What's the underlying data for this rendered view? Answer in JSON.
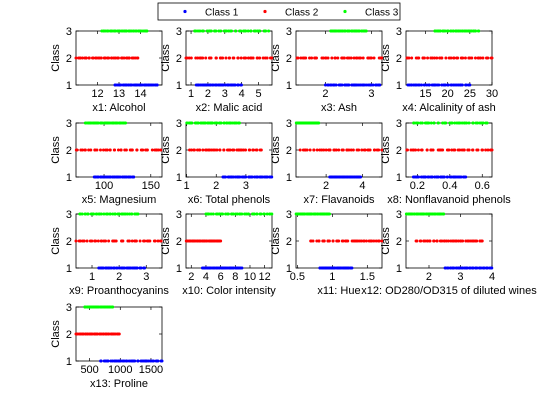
{
  "legend": {
    "entries": [
      {
        "name": "Class 1",
        "color": "#0000ff"
      },
      {
        "name": "Class 2",
        "color": "#ff0000"
      },
      {
        "name": "Class 3",
        "color": "#00ff00"
      }
    ],
    "placement": "top-center"
  },
  "chart_data": [
    {
      "type": "scatter",
      "xlabel": "x1: Alcohol",
      "ylabel": "Class",
      "xlim": [
        11,
        15
      ],
      "ylim": [
        1,
        3
      ],
      "xticks": [
        12,
        13,
        14
      ],
      "yticks": [
        1,
        2,
        3
      ],
      "ranges": [
        [
          12.8,
          14.8
        ],
        [
          11.0,
          13.9
        ],
        [
          12.2,
          14.3
        ]
      ]
    },
    {
      "type": "scatter",
      "xlabel": "x2: Malic acid",
      "ylabel": "Class",
      "xlim": [
        0.7,
        5.8
      ],
      "ylim": [
        1,
        3
      ],
      "xticks": [
        1,
        2,
        3,
        4,
        5
      ],
      "yticks": [
        1,
        2,
        3
      ],
      "ranges": [
        [
          1.3,
          4.0
        ],
        [
          0.7,
          5.8
        ],
        [
          1.2,
          5.6
        ]
      ]
    },
    {
      "type": "scatter",
      "xlabel": "x3: Ash",
      "ylabel": "Class",
      "xlim": [
        1.36,
        3.23
      ],
      "ylim": [
        1,
        3
      ],
      "xticks": [
        2,
        3
      ],
      "yticks": [
        1,
        2,
        3
      ],
      "ranges": [
        [
          2.0,
          3.2
        ],
        [
          1.36,
          3.23
        ],
        [
          2.1,
          2.9
        ]
      ]
    },
    {
      "type": "scatter",
      "xlabel": "x4: Alcalinity of ash",
      "ylabel": "Class",
      "xlim": [
        10.6,
        30
      ],
      "ylim": [
        1,
        3
      ],
      "xticks": [
        15,
        20,
        25,
        30
      ],
      "yticks": [
        1,
        2,
        3
      ],
      "ranges": [
        [
          11,
          25
        ],
        [
          10.6,
          30
        ],
        [
          17,
          27
        ]
      ]
    },
    {
      "type": "scatter",
      "xlabel": "x5: Magnesium",
      "ylabel": "Class",
      "xlim": [
        70,
        162
      ],
      "ylim": [
        1,
        3
      ],
      "xticks": [
        100,
        150
      ],
      "yticks": [
        1,
        2,
        3
      ],
      "ranges": [
        [
          89,
          132
        ],
        [
          70,
          162
        ],
        [
          80,
          123
        ]
      ]
    },
    {
      "type": "scatter",
      "xlabel": "x6: Total phenols",
      "ylabel": "Class",
      "xlim": [
        0.98,
        3.88
      ],
      "ylim": [
        1,
        3
      ],
      "xticks": [
        1,
        2,
        3
      ],
      "yticks": [
        1,
        2,
        3
      ],
      "ranges": [
        [
          2.2,
          3.88
        ],
        [
          1.1,
          3.52
        ],
        [
          0.98,
          2.8
        ]
      ]
    },
    {
      "type": "scatter",
      "xlabel": "x7: Flavanoids",
      "ylabel": "Class",
      "xlim": [
        0.34,
        5.08
      ],
      "ylim": [
        1,
        3
      ],
      "xticks": [
        2,
        4
      ],
      "yticks": [
        1,
        2,
        3
      ],
      "ranges": [
        [
          2.2,
          3.9
        ],
        [
          0.57,
          5.08
        ],
        [
          0.34,
          1.6
        ]
      ]
    },
    {
      "type": "scatter",
      "xlabel": "x8: Nonflavanoid phenols",
      "ylabel": "Class",
      "xlim": [
        0.13,
        0.66
      ],
      "ylim": [
        1,
        3
      ],
      "xticks": [
        0.2,
        0.4,
        0.6
      ],
      "yticks": [
        1,
        2,
        3
      ],
      "ranges": [
        [
          0.17,
          0.5
        ],
        [
          0.13,
          0.66
        ],
        [
          0.17,
          0.63
        ]
      ]
    },
    {
      "type": "scatter",
      "xlabel": "x9: Proanthocyanins",
      "ylabel": "Class",
      "xlim": [
        0.41,
        3.58
      ],
      "ylim": [
        1,
        3
      ],
      "xticks": [
        1,
        2,
        3
      ],
      "yticks": [
        1,
        2,
        3
      ],
      "ranges": [
        [
          1.25,
          2.96
        ],
        [
          0.41,
          3.58
        ],
        [
          0.55,
          2.7
        ]
      ]
    },
    {
      "type": "scatter",
      "xlabel": "x10: Color intensity",
      "ylabel": "Class",
      "xlim": [
        1.28,
        13
      ],
      "ylim": [
        1,
        3
      ],
      "xticks": [
        2,
        4,
        6,
        8,
        10,
        12
      ],
      "yticks": [
        1,
        2,
        3
      ],
      "ranges": [
        [
          3.52,
          8.9
        ],
        [
          1.28,
          6.0
        ],
        [
          3.85,
          13.0
        ]
      ]
    },
    {
      "type": "scatter",
      "xlabel": "x11: Hue",
      "ylabel": "Class",
      "xlim": [
        0.48,
        1.71
      ],
      "ylim": [
        1,
        3
      ],
      "xticks": [
        0.5,
        1,
        1.5
      ],
      "yticks": [
        1,
        2,
        3
      ],
      "ranges": [
        [
          0.82,
          1.28
        ],
        [
          0.69,
          1.71
        ],
        [
          0.48,
          0.96
        ]
      ]
    },
    {
      "type": "scatter",
      "xlabel": "x12: OD280/OD315 of diluted wines",
      "ylabel": "Class",
      "xlim": [
        1.27,
        4
      ],
      "ylim": [
        1,
        3
      ],
      "xticks": [
        2,
        3,
        4
      ],
      "yticks": [
        1,
        2,
        3
      ],
      "ranges": [
        [
          2.51,
          4.0
        ],
        [
          1.59,
          3.69
        ],
        [
          1.27,
          2.47
        ]
      ]
    },
    {
      "type": "scatter",
      "xlabel": "x13: Proline",
      "ylabel": "Class",
      "xlim": [
        278,
        1680
      ],
      "ylim": [
        1,
        3
      ],
      "xticks": [
        500,
        1000,
        1500
      ],
      "yticks": [
        1,
        2,
        3
      ],
      "ranges": [
        [
          680,
          1680
        ],
        [
          278,
          985
        ],
        [
          415,
          880
        ]
      ]
    }
  ]
}
